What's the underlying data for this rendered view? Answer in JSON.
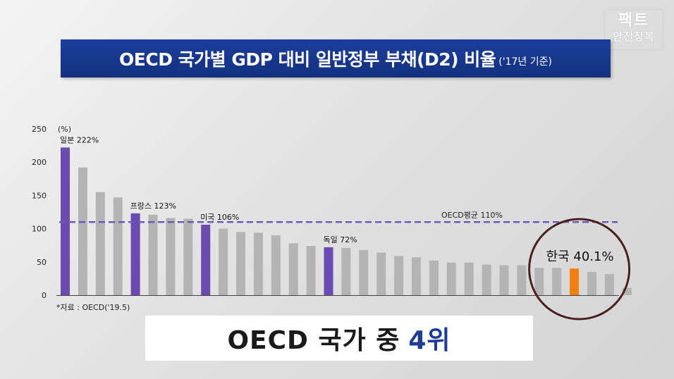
{
  "logo": {
    "line1": "팩트",
    "line2": "안전정복"
  },
  "title": {
    "main": "OECD 국가별 GDP 대비 일반정부 부채(D2) 비율",
    "sub": "('17년 기준)"
  },
  "source": "*자료 : OECD('19.5)",
  "caption": {
    "text": "OECD 국가 중",
    "rank": "4위"
  },
  "colors": {
    "highlight": "#6a4bb0",
    "normal": "#b4b4b4",
    "korea": "#f08010",
    "average_line": "#6a55b8",
    "circle": "#4a1f1f"
  },
  "chart_data": {
    "type": "bar",
    "ylabel": "(%)",
    "ylim": [
      0,
      250
    ],
    "yticks": [
      0,
      50,
      100,
      150,
      200,
      250
    ],
    "values": [
      222,
      192,
      155,
      147,
      123,
      121,
      116,
      115,
      106,
      100,
      95,
      94,
      90,
      78,
      74,
      72,
      71,
      68,
      64,
      59,
      57,
      52,
      49,
      49,
      46,
      45,
      45,
      41,
      41,
      40.1,
      35,
      32,
      11
    ],
    "highlights": [
      {
        "index": 0,
        "label": "일본 222%"
      },
      {
        "index": 4,
        "label": "프랑스 123%"
      },
      {
        "index": 8,
        "label": "미국 106%"
      },
      {
        "index": 15,
        "label": "독일 72%"
      }
    ],
    "korea": {
      "index": 29,
      "label": "한국 40.1%"
    },
    "average": {
      "value": 110,
      "label": "OECD평균 110%"
    }
  }
}
